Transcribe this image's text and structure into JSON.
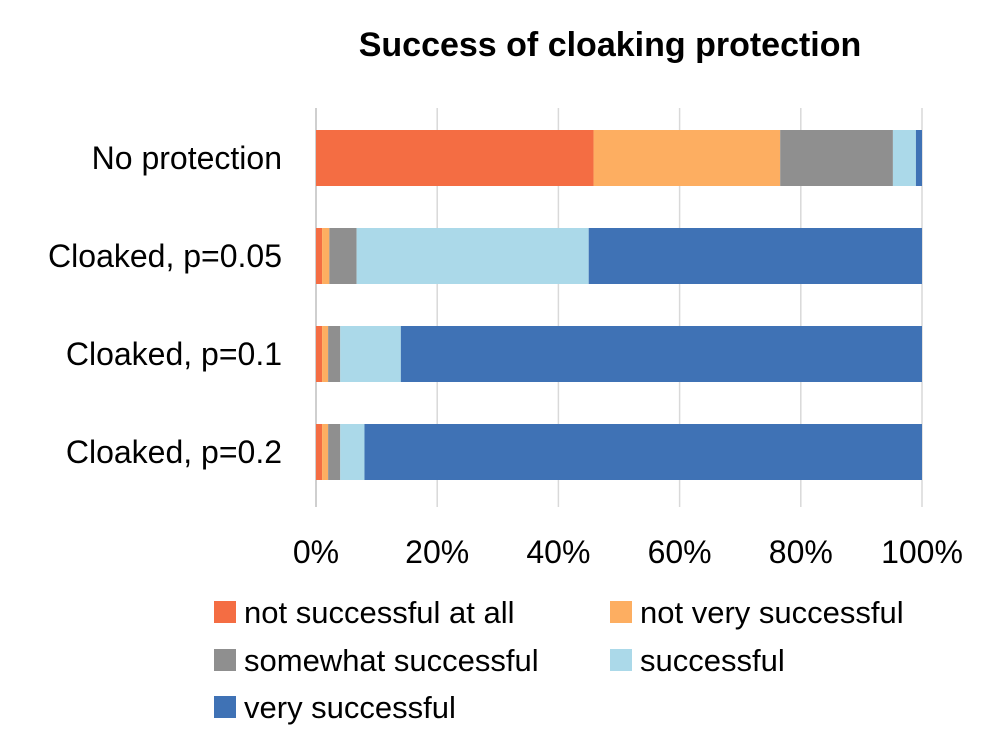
{
  "chart_data": {
    "type": "bar",
    "orientation": "horizontal",
    "stacked": "percent",
    "title": "Success of cloaking protection",
    "categories": [
      "No protection",
      "Cloaked, p=0.05",
      "Cloaked, p=0.1",
      "Cloaked, p=0.2"
    ],
    "series": [
      {
        "name": "not successful at all",
        "color": "#f46d43",
        "values": [
          45.8,
          1.0,
          1.0,
          1.0
        ]
      },
      {
        "name": "not very successful",
        "color": "#fdae61",
        "values": [
          30.8,
          1.2,
          1.0,
          1.0
        ]
      },
      {
        "name": "somewhat successful",
        "color": "#8f8f8f",
        "values": [
          18.6,
          4.5,
          2.0,
          2.0
        ]
      },
      {
        "name": "successful",
        "color": "#abd9e9",
        "values": [
          3.8,
          38.3,
          10.0,
          4.0
        ]
      },
      {
        "name": "very successful",
        "color": "#3f72b5",
        "values": [
          1.0,
          55.0,
          86.0,
          92.0
        ]
      }
    ],
    "xlim": [
      0,
      100
    ],
    "xticks": [
      "0%",
      "20%",
      "40%",
      "60%",
      "80%",
      "100%"
    ],
    "xlabel": "",
    "ylabel": "",
    "grid": "vertical",
    "legend_position": "bottom"
  }
}
